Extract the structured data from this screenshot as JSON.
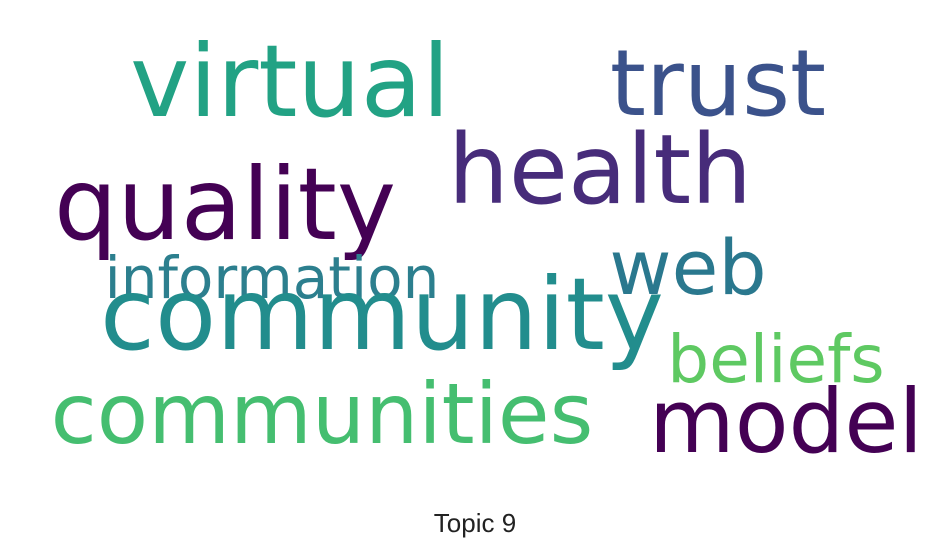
{
  "title": "Topic 9",
  "words": [
    {
      "text": "virtual",
      "color": "#22a284"
    },
    {
      "text": "trust",
      "color": "#3b528b"
    },
    {
      "text": "health",
      "color": "#472c7a"
    },
    {
      "text": "quality",
      "color": "#440154"
    },
    {
      "text": "web",
      "color": "#2a788e"
    },
    {
      "text": "information",
      "color": "#2c7f8e"
    },
    {
      "text": "community",
      "color": "#228d8d"
    },
    {
      "text": "beliefs",
      "color": "#5ec962"
    },
    {
      "text": "communities",
      "color": "#45be70"
    },
    {
      "text": "model",
      "color": "#440154"
    }
  ]
}
